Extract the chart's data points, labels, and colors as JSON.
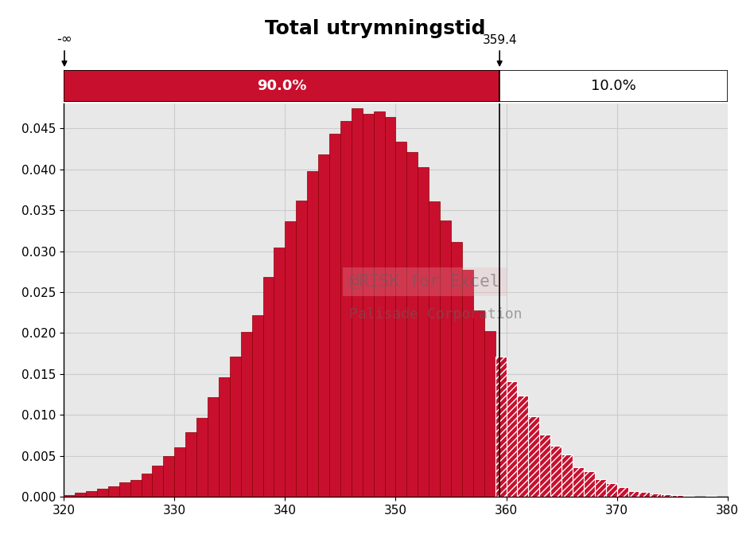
{
  "title": "Total utrymningstid",
  "xlim": [
    320,
    380
  ],
  "ylim": [
    0,
    0.048
  ],
  "yticks": [
    0.0,
    0.005,
    0.01,
    0.015,
    0.02,
    0.025,
    0.03,
    0.035,
    0.04,
    0.045
  ],
  "xticks": [
    320,
    330,
    340,
    350,
    360,
    370,
    380
  ],
  "percentile_value": 359.4,
  "percentile_label": "359.4",
  "left_label": "-∞",
  "left_pct": "90.0%",
  "right_pct": "10.0%",
  "bar_color_solid": "#c8102e",
  "bar_edge_color": "#8b0000",
  "watermark_line1": "@RISK for Excel",
  "watermark_line2": "Palisade Corporation",
  "hist_mean": 347.5,
  "hist_std": 8.5,
  "bin_width": 1.0,
  "background_color": "#e8e8e8",
  "grid_color": "#cccccc",
  "header_bar_color": "#c8102e",
  "header_text_color": "#ffffff"
}
